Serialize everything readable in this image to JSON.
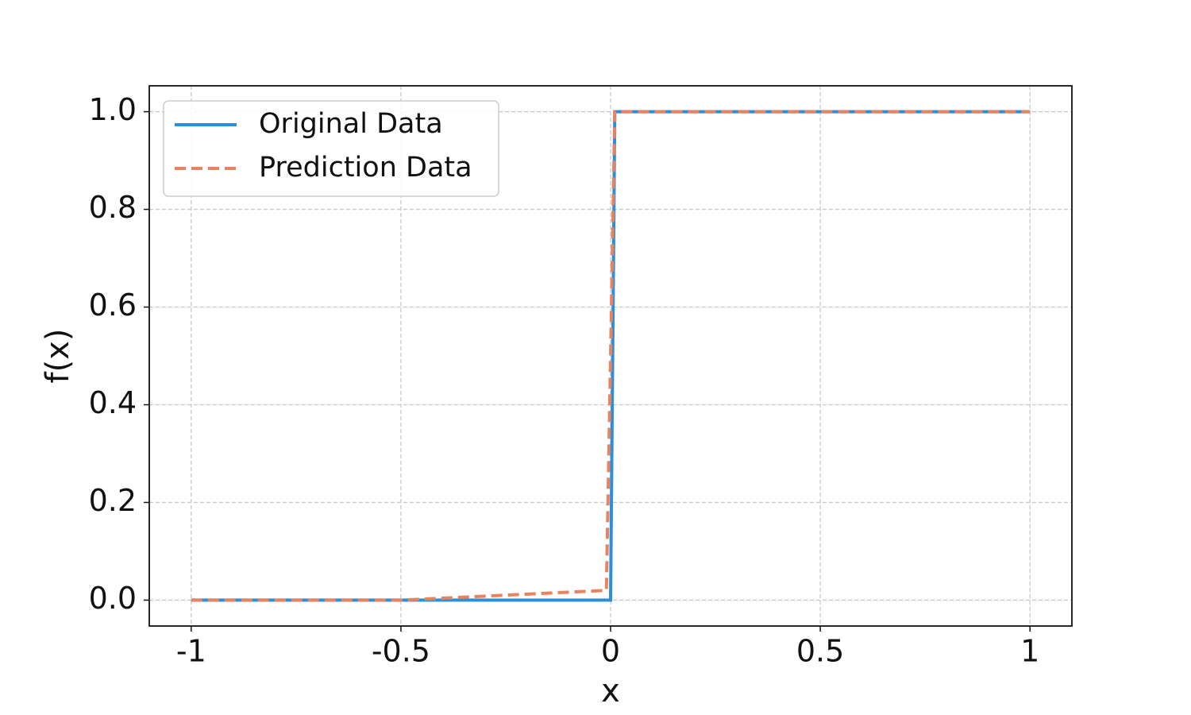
{
  "chart_data": {
    "type": "line",
    "x_label": "x",
    "y_label": "f(x)",
    "x": [
      -1,
      -0.5,
      -0.01,
      0,
      0.01,
      0.5,
      1
    ],
    "series": [
      {
        "name": "Original Data",
        "color": "#2b8fdc",
        "dash": "solid",
        "values": [
          0,
          0,
          0,
          0,
          1,
          1,
          1
        ]
      },
      {
        "name": "Prediction Data",
        "color": "#e8825f",
        "dash": "dashed",
        "values": [
          0,
          0,
          0.02,
          0.5,
          1,
          1,
          1
        ]
      }
    ],
    "xlim": [
      -1.1,
      1.1
    ],
    "ylim": [
      -0.053,
      1.053
    ],
    "xticks": [
      -1,
      -0.5,
      0,
      0.5,
      1
    ],
    "yticks": [
      {
        "value": 0,
        "label": "0.0"
      },
      0.2,
      0.4,
      0.6,
      0.8,
      {
        "value": 1,
        "label": "1.0"
      }
    ],
    "grid": true,
    "legend": "upper left"
  }
}
